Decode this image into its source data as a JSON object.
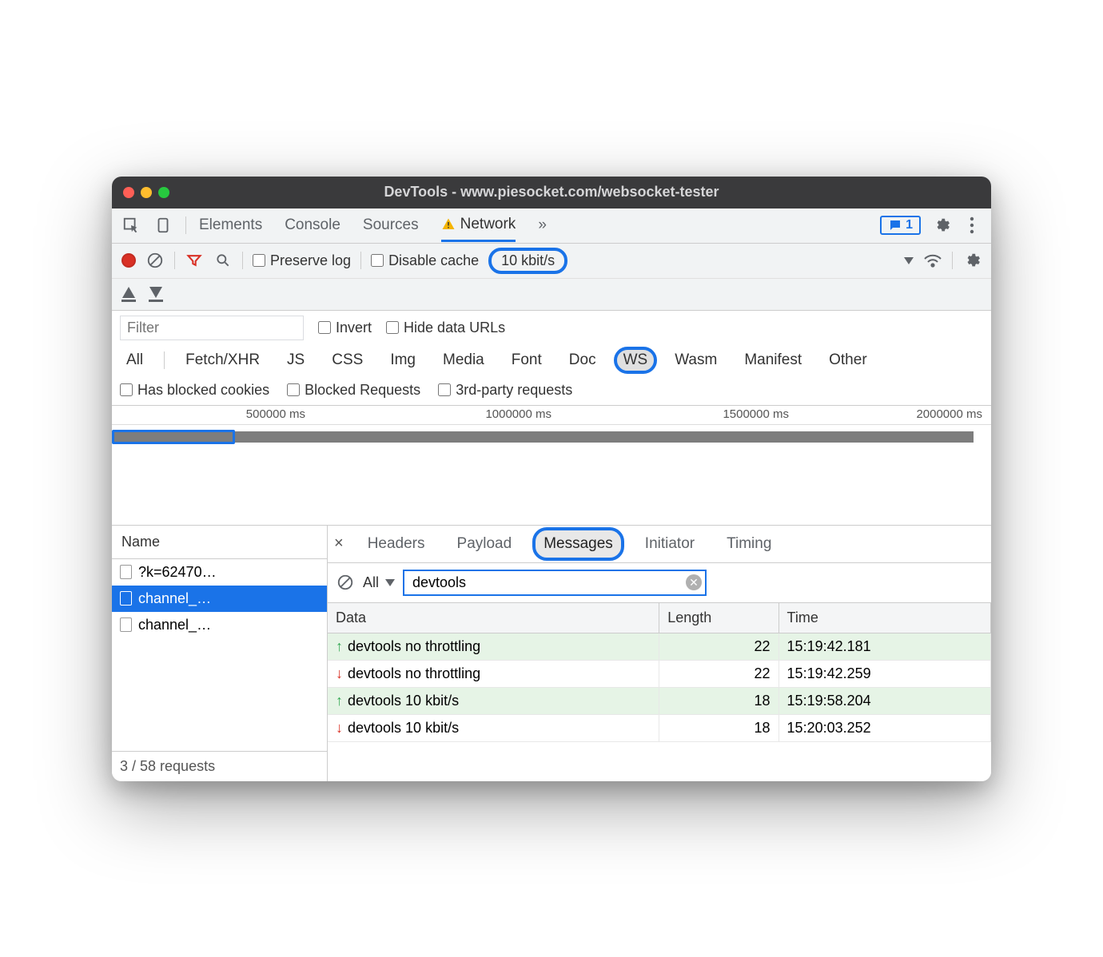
{
  "window": {
    "title": "DevTools - www.piesocket.com/websocket-tester"
  },
  "main_tabs": {
    "elements": "Elements",
    "console": "Console",
    "sources": "Sources",
    "network": "Network",
    "more": "»",
    "issues_count": "1"
  },
  "net_toolbar": {
    "preserve_log": "Preserve log",
    "disable_cache": "Disable cache",
    "throttle_label": "10 kbit/s"
  },
  "filter_bar": {
    "filter_placeholder": "Filter",
    "invert": "Invert",
    "hide_data_urls": "Hide data URLs"
  },
  "type_filters": {
    "all": "All",
    "fetch": "Fetch/XHR",
    "js": "JS",
    "css": "CSS",
    "img": "Img",
    "media": "Media",
    "font": "Font",
    "doc": "Doc",
    "ws": "WS",
    "wasm": "Wasm",
    "manifest": "Manifest",
    "other": "Other"
  },
  "check_row": {
    "blocked_cookies": "Has blocked cookies",
    "blocked_requests": "Blocked Requests",
    "third_party": "3rd-party requests"
  },
  "timeline": {
    "ticks": [
      "500000 ms",
      "1000000 ms",
      "1500000 ms",
      "2000000 ms"
    ],
    "tick_positions_pct": [
      22,
      50,
      77,
      99
    ],
    "bar_width_pct": 98,
    "selection_left_pct": 0,
    "selection_width_pct": 14
  },
  "request_list": {
    "header": "Name",
    "rows": [
      {
        "label": "?k=62470…",
        "selected": false
      },
      {
        "label": "channel_…",
        "selected": true
      },
      {
        "label": "channel_…",
        "selected": false
      }
    ],
    "footer": "3 / 58 requests"
  },
  "detail_tabs": {
    "headers": "Headers",
    "payload": "Payload",
    "messages": "Messages",
    "initiator": "Initiator",
    "timing": "Timing"
  },
  "msg_toolbar": {
    "dropdown_label": "All",
    "search_value": "devtools"
  },
  "msg_table": {
    "col_data": "Data",
    "col_length": "Length",
    "col_time": "Time",
    "rows": [
      {
        "dir": "up",
        "data": "devtools no throttling",
        "length": "22",
        "time": "15:19:42.181"
      },
      {
        "dir": "down",
        "data": "devtools no throttling",
        "length": "22",
        "time": "15:19:42.259"
      },
      {
        "dir": "up",
        "data": "devtools 10 kbit/s",
        "length": "18",
        "time": "15:19:58.204"
      },
      {
        "dir": "down",
        "data": "devtools 10 kbit/s",
        "length": "18",
        "time": "15:20:03.252"
      }
    ]
  },
  "colors": {
    "highlight": "#1a73e8",
    "row_up_bg": "#e6f4e6",
    "arrow_up": "#34a853",
    "arrow_down": "#d93025"
  }
}
